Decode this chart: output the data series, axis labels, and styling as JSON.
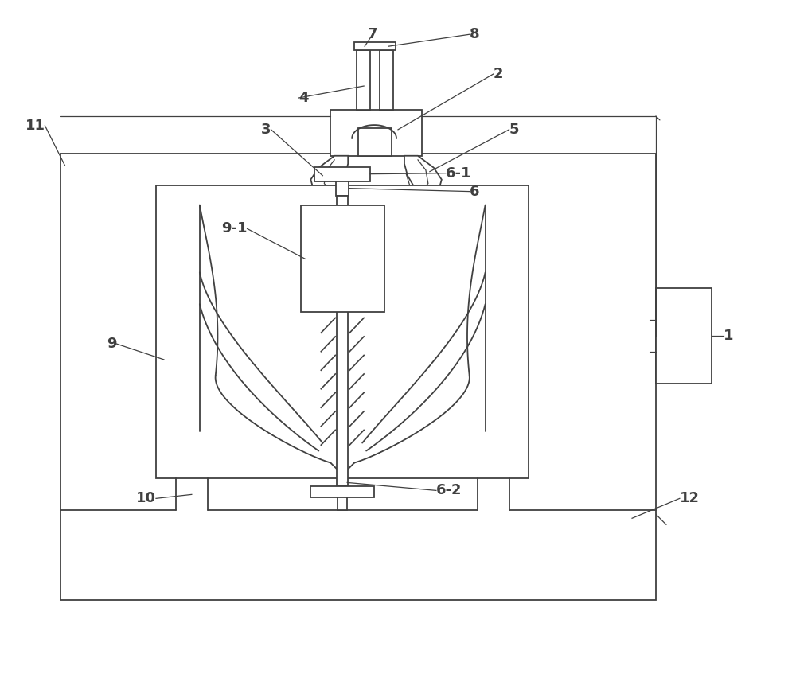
{
  "bg_color": "#ffffff",
  "line_color": "#404040",
  "lw": 1.3,
  "tlw": 0.9,
  "fs": 13,
  "fig_w": 10.0,
  "fig_h": 8.52
}
